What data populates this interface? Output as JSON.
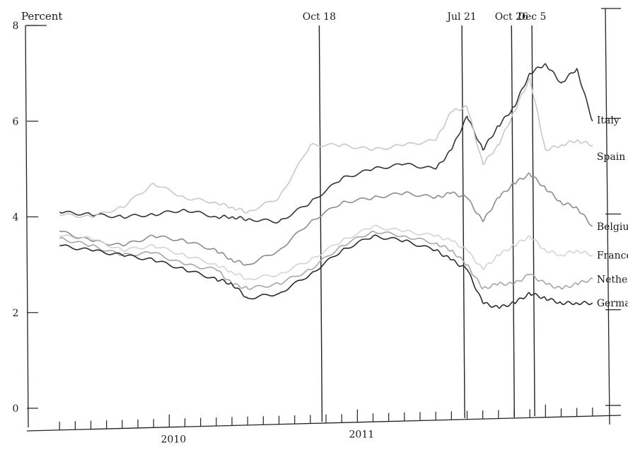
{
  "chart_data": {
    "type": "line",
    "title": "",
    "ylabel": "Percent",
    "xlabel": "",
    "ylim": [
      0,
      8
    ],
    "yticks": [
      0,
      2,
      4,
      6,
      8
    ],
    "xlim": [
      "2009-05",
      "2012-05"
    ],
    "x_tick_labels": [
      {
        "label": "2010",
        "date": "2010-01"
      },
      {
        "label": "2011",
        "date": "2011-01"
      }
    ],
    "events": [
      {
        "label": "Oct 18",
        "date": "2010-10-18"
      },
      {
        "label": "Jul 21",
        "date": "2011-07-21"
      },
      {
        "label": "Oct 26",
        "date": "2011-10-26"
      },
      {
        "label": "Dec 5",
        "date": "2011-12-05"
      }
    ],
    "x": [
      "2009-06",
      "2009-08",
      "2009-10",
      "2009-12",
      "2010-02",
      "2010-04",
      "2010-05",
      "2010-06",
      "2010-08",
      "2010-10",
      "2010-12",
      "2011-02",
      "2011-04",
      "2011-06",
      "2011-07",
      "2011-08",
      "2011-09",
      "2011-10",
      "2011-11",
      "2011-12",
      "2012-01",
      "2012-02",
      "2012-03",
      "2012-04"
    ],
    "series": [
      {
        "name": "Italy",
        "color": "#333333",
        "values": [
          4.1,
          4.05,
          4.0,
          4.05,
          4.15,
          4.0,
          4.0,
          3.95,
          3.9,
          4.3,
          4.8,
          5.0,
          5.1,
          5.0,
          5.4,
          6.1,
          5.4,
          5.9,
          6.3,
          7.0,
          7.2,
          6.8,
          7.1,
          6.0
        ]
      },
      {
        "name": "Spain",
        "color": "#c8c8c8",
        "values": [
          4.05,
          4.0,
          4.2,
          4.7,
          4.4,
          4.3,
          4.2,
          4.1,
          4.4,
          5.5,
          5.5,
          5.4,
          5.5,
          5.6,
          6.2,
          6.3,
          5.1,
          5.5,
          6.2,
          6.9,
          5.4,
          5.5,
          5.6,
          5.5
        ]
      },
      {
        "name": "Belgium",
        "color": "#8c8c8c",
        "values": [
          3.7,
          3.5,
          3.4,
          3.6,
          3.5,
          3.3,
          3.1,
          3.0,
          3.3,
          3.9,
          4.3,
          4.4,
          4.5,
          4.4,
          4.5,
          4.4,
          3.9,
          4.4,
          4.7,
          4.9,
          4.6,
          4.3,
          4.2,
          3.8
        ]
      },
      {
        "name": "France",
        "color": "#d4d4d4",
        "values": [
          3.6,
          3.55,
          3.3,
          3.4,
          3.2,
          3.0,
          2.85,
          2.7,
          2.8,
          3.1,
          3.5,
          3.8,
          3.7,
          3.6,
          3.5,
          3.3,
          2.9,
          3.2,
          3.4,
          3.6,
          3.3,
          3.2,
          3.3,
          3.2
        ]
      },
      {
        "name": "Netherlands",
        "color": "#a6a6a6",
        "values": [
          3.55,
          3.4,
          3.2,
          3.25,
          3.0,
          2.9,
          2.6,
          2.5,
          2.6,
          2.9,
          3.4,
          3.7,
          3.6,
          3.45,
          3.3,
          3.0,
          2.5,
          2.6,
          2.6,
          2.8,
          2.6,
          2.5,
          2.6,
          2.7
        ]
      },
      {
        "name": "Germany",
        "color": "#2b2b2b",
        "values": [
          3.4,
          3.3,
          3.2,
          3.1,
          2.9,
          2.7,
          2.6,
          2.3,
          2.4,
          2.8,
          3.3,
          3.6,
          3.5,
          3.3,
          3.1,
          2.9,
          2.2,
          2.1,
          2.2,
          2.4,
          2.3,
          2.2,
          2.2,
          2.2
        ]
      }
    ],
    "grid": false,
    "legend": "labels at line ends (right)"
  }
}
